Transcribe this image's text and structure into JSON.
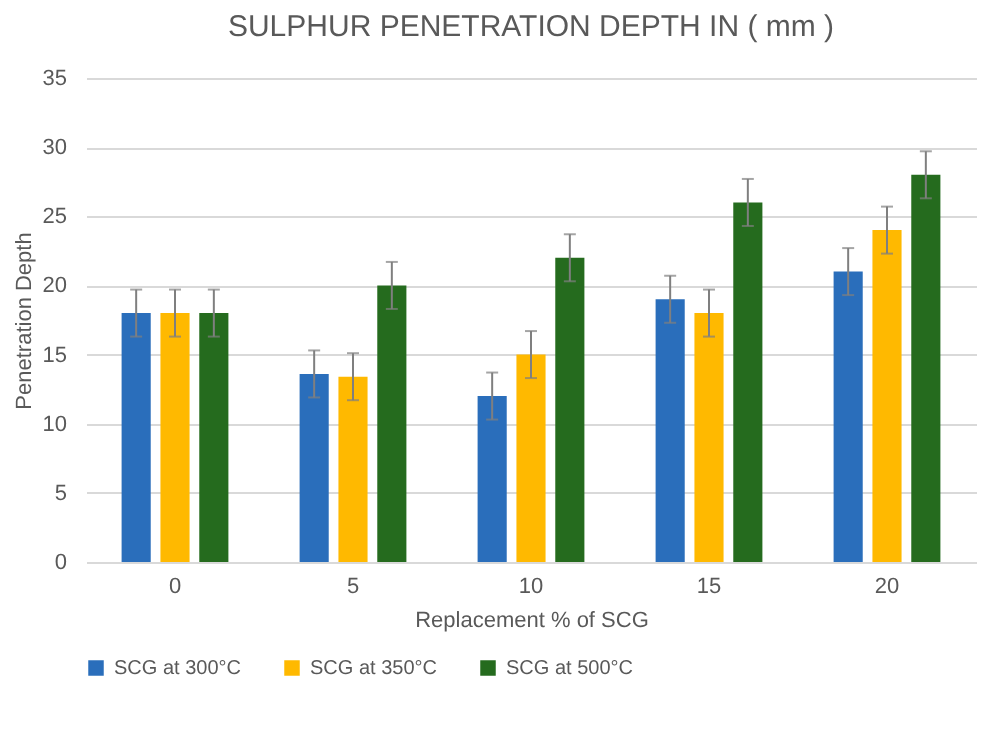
{
  "chart_data": {
    "type": "bar",
    "title": "SULPHUR PENETRATION DEPTH IN ( mm )",
    "xlabel": "Replacement %  of  SCG",
    "ylabel": "Penetration Depth",
    "categories": [
      "0",
      "5",
      "10",
      "15",
      "20"
    ],
    "series": [
      {
        "name": "SCG at 300°C",
        "color": "#2a6ebb",
        "values": [
          18,
          13.6,
          12,
          19,
          21
        ],
        "errors": [
          1.7,
          1.7,
          1.7,
          1.7,
          1.7
        ]
      },
      {
        "name": "SCG at 350°C",
        "color": "#ffb900",
        "values": [
          18,
          13.4,
          15,
          18,
          24
        ],
        "errors": [
          1.7,
          1.7,
          1.7,
          1.7,
          1.7
        ]
      },
      {
        "name": "SCG at 500°C",
        "color": "#256b1e",
        "values": [
          18,
          20,
          22,
          26,
          28
        ],
        "errors": [
          1.7,
          1.7,
          1.7,
          1.7,
          1.7
        ]
      }
    ],
    "ylim": [
      0,
      35
    ],
    "yticks": [
      0,
      5,
      10,
      15,
      20,
      25,
      30,
      35
    ],
    "grid": "y",
    "legend": "bottom"
  }
}
